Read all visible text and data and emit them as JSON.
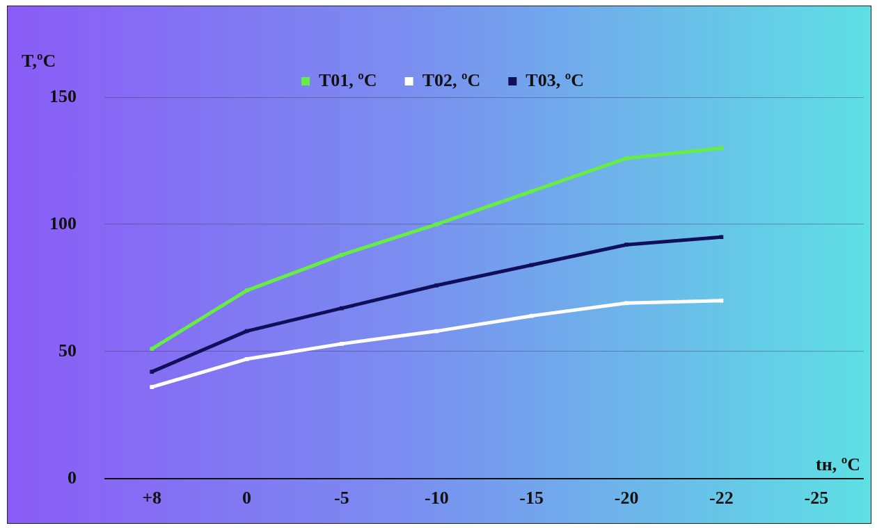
{
  "chart_data": {
    "type": "line",
    "xlabel": "tн, ºC",
    "ylabel": "T,ºC",
    "categories": [
      "+8",
      "0",
      "-5",
      "-10",
      "-15",
      "-20",
      "-22",
      "-25"
    ],
    "series": [
      {
        "name": "T01, ºC",
        "color": "#66ee44",
        "values": [
          51,
          74,
          88,
          100,
          113,
          126,
          130,
          null
        ]
      },
      {
        "name": "T02, ºC",
        "color": "#ffffff",
        "values": [
          36,
          47,
          53,
          58,
          64,
          69,
          70,
          null
        ]
      },
      {
        "name": "T03, ºC",
        "color": "#10105a",
        "values": [
          42,
          58,
          67,
          76,
          84,
          92,
          95,
          null
        ]
      }
    ],
    "ylim": [
      0,
      150
    ],
    "yticks": [
      0,
      50,
      100,
      150
    ],
    "grid": "y",
    "legend": "top",
    "marker": "square",
    "line_style": "solid"
  }
}
